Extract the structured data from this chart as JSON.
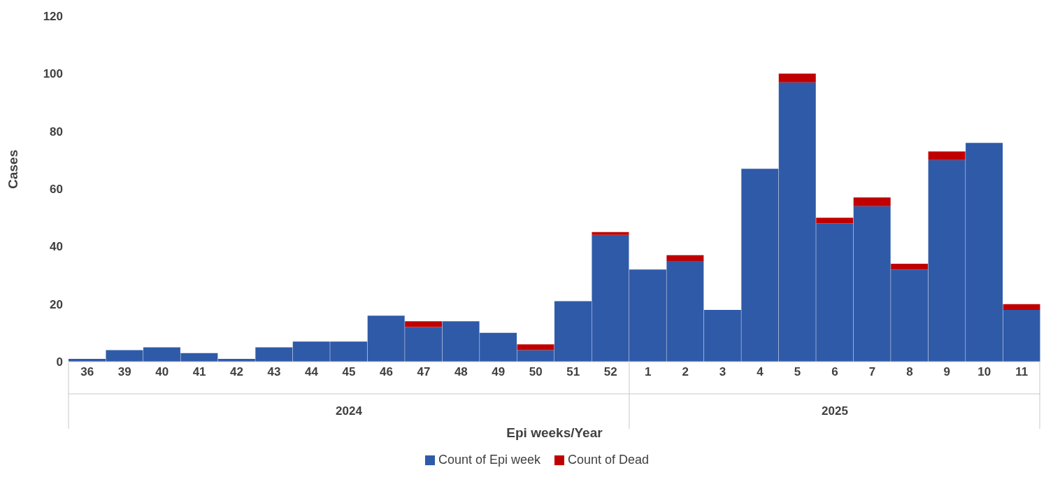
{
  "chart_data": {
    "type": "bar",
    "stacked": true,
    "xlabel": "Epi weeks/Year",
    "ylabel": "Cases",
    "categories": [
      "36",
      "39",
      "40",
      "41",
      "42",
      "43",
      "44",
      "45",
      "46",
      "47",
      "48",
      "49",
      "50",
      "51",
      "52",
      "1",
      "2",
      "3",
      "4",
      "5",
      "6",
      "7",
      "8",
      "9",
      "10",
      "11"
    ],
    "series": [
      {
        "name": "Count of Epi week",
        "color": "#2f5aa8",
        "values": [
          1,
          4,
          5,
          3,
          1,
          5,
          7,
          7,
          16,
          12,
          14,
          10,
          4,
          21,
          44,
          32,
          35,
          18,
          67,
          97,
          48,
          54,
          32,
          70,
          76,
          18
        ]
      },
      {
        "name": "Count of Dead",
        "color": "#c00000",
        "values": [
          null,
          null,
          null,
          null,
          null,
          null,
          null,
          null,
          null,
          2,
          null,
          null,
          2,
          null,
          1,
          null,
          2,
          null,
          null,
          3,
          2,
          3,
          2,
          3,
          null,
          2
        ]
      }
    ],
    "annotations": [
      "2024",
      "2025"
    ],
    "ylim": [
      0,
      120
    ],
    "yticks": [
      0,
      20,
      40,
      60,
      80,
      100,
      120
    ],
    "legend": "bottom"
  }
}
